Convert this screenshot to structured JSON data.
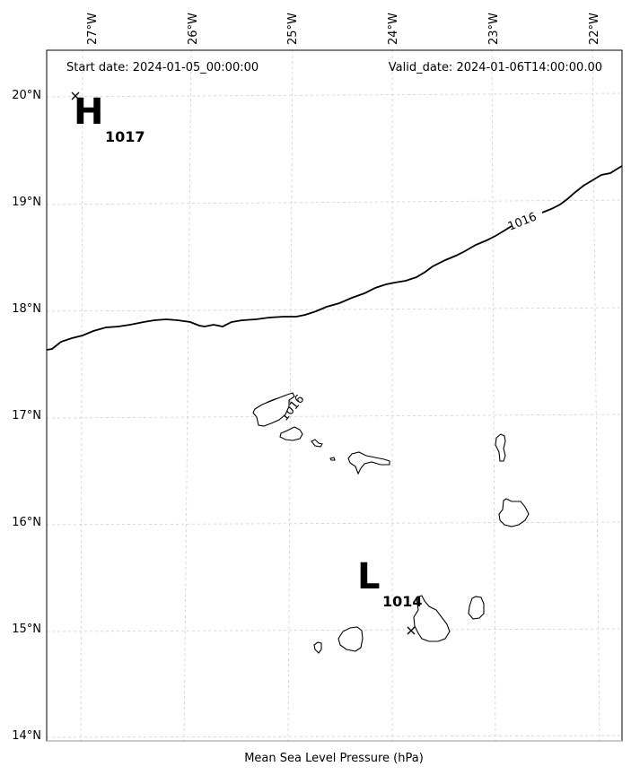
{
  "header": {
    "start_date": "Start date: 2024-01-05_00:00:00",
    "valid_date": "Valid_date: 2024-01-06T14:00:00.00"
  },
  "footer": {
    "variable_label": "Mean Sea Level Pressure (hPa)"
  },
  "axes": {
    "longitude_ticks": [
      "27°W",
      "26°W",
      "25°W",
      "24°W",
      "23°W",
      "22°W"
    ],
    "latitude_ticks": [
      "20°N",
      "19°N",
      "18°N",
      "17°N",
      "16°N",
      "15°N",
      "14°N"
    ]
  },
  "pressure_centers": [
    {
      "letter": "H",
      "value": "1017",
      "lon": -26.95,
      "lat": 20.0
    },
    {
      "letter": "L",
      "value": "1014",
      "lon": -23.85,
      "lat": 14.97
    }
  ],
  "contour_labels": [
    {
      "text": "1016",
      "contour_id": "main-isobar"
    },
    {
      "text": "1016",
      "contour_id": "island-isobar"
    }
  ],
  "colors": {
    "isobar": "#000000",
    "coastline": "#000000",
    "gridline": "#cfcfcf"
  }
}
